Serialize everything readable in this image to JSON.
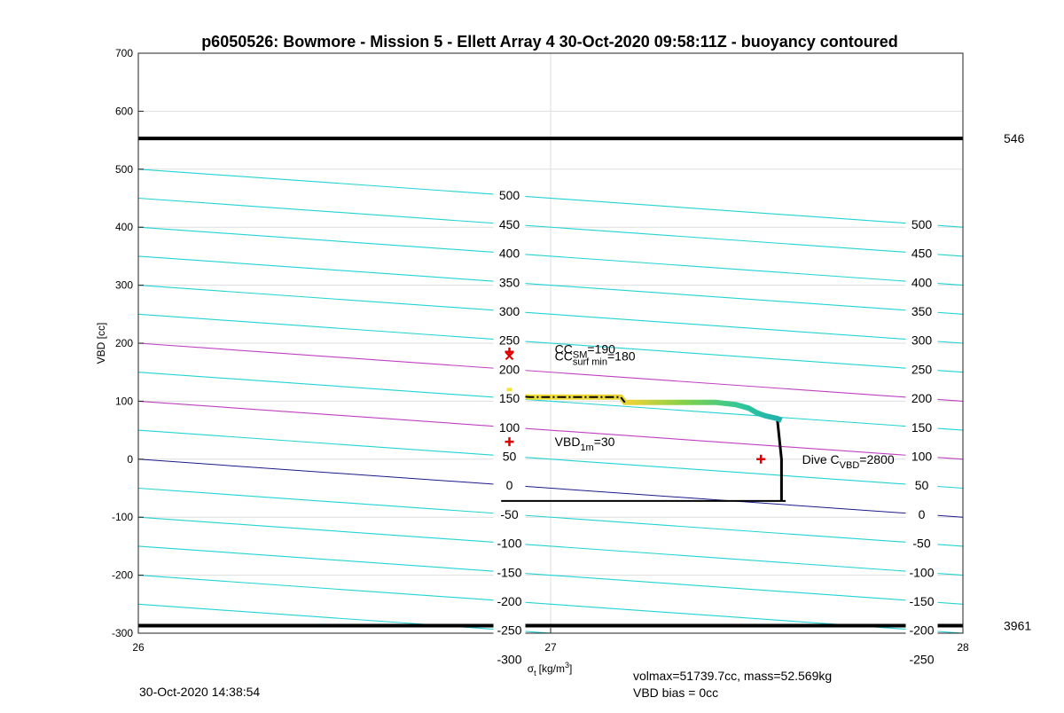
{
  "chart_data": {
    "type": "line",
    "title": "p6050526: Bowmore - Mission 5 - Ellett Array 4 30-Oct-2020 09:58:11Z - buoyancy contoured",
    "xlabel": "σ",
    "xlabel_sub": "t",
    "xlabel_unit": "[kg/m",
    "xlabel_unit_sup": "3",
    "xlabel_unit_end": "]",
    "ylabel": "VBD [cc]",
    "xlim": [
      26,
      28
    ],
    "ylim": [
      -300,
      700
    ],
    "xticks": [
      "26",
      "27",
      "28"
    ],
    "yticks": [
      "-300",
      "-200",
      "-100",
      "0",
      "100",
      "200",
      "300",
      "400",
      "500",
      "600",
      "700"
    ],
    "grid": true,
    "contour_slope_per_unit": -50,
    "contour_levels": [
      -300,
      -250,
      -200,
      -150,
      -100,
      -50,
      0,
      50,
      100,
      150,
      200,
      250,
      300,
      350,
      400,
      450,
      500
    ],
    "contour_colors": {
      "default": "#22d3d3",
      "zero": "#1a1a8c",
      "highlight": "#c040c0"
    },
    "highlight_levels": [
      100,
      200
    ],
    "contour_labels_left": {
      "x": 26.9,
      "levels": [
        "500",
        "450",
        "400",
        "350",
        "300",
        "250",
        "200",
        "150",
        "100",
        "50",
        "0",
        "-50",
        "-100",
        "-150",
        "-200",
        "-250",
        "-300"
      ]
    },
    "contour_labels_right": {
      "x": 27.9,
      "levels": [
        "500",
        "450",
        "400",
        "350",
        "300",
        "250",
        "200",
        "150",
        "100",
        "50",
        "0",
        "-50",
        "-100",
        "-150",
        "-200",
        "-250"
      ]
    },
    "limit_lines": [
      {
        "y": 553,
        "label": "546"
      },
      {
        "y": -287,
        "label": "3961"
      }
    ],
    "profile_upper": [
      [
        26.9,
        123
      ],
      [
        26.9,
        110
      ],
      [
        26.95,
        107
      ],
      [
        27.0,
        107
      ],
      [
        27.1,
        107
      ],
      [
        27.17,
        107
      ],
      [
        27.18,
        98
      ],
      [
        27.3,
        98
      ],
      [
        27.4,
        98
      ],
      [
        27.45,
        94
      ],
      [
        27.48,
        88
      ],
      [
        27.5,
        80
      ],
      [
        27.52,
        75
      ],
      [
        27.55,
        70
      ],
      [
        27.56,
        67
      ]
    ],
    "profile_lower": [
      [
        26.88,
        -72
      ],
      [
        27.0,
        -72
      ],
      [
        27.2,
        -72
      ],
      [
        27.4,
        -72
      ],
      [
        27.5,
        -72
      ],
      [
        27.55,
        -72
      ],
      [
        27.57,
        -72
      ]
    ],
    "profile_vertical": [
      [
        27.55,
        67
      ],
      [
        27.56,
        0
      ],
      [
        27.56,
        -72
      ]
    ],
    "markers": [
      {
        "x": 26.9,
        "y": 185,
        "symbol": "plus",
        "label": "CC",
        "label_sub": "SM",
        "label_end": "=190",
        "lx": 27.01,
        "ly": 190
      },
      {
        "x": 26.9,
        "y": 178,
        "symbol": "x",
        "label": "CC",
        "label_sub": "surf min",
        "label_end": "=180",
        "lx": 27.01,
        "ly": 178
      },
      {
        "x": 26.9,
        "y": 30,
        "symbol": "plus",
        "label": "VBD",
        "label_sub": "1m",
        "label_end": "=30",
        "lx": 27.01,
        "ly": 30
      },
      {
        "x": 27.51,
        "y": 0,
        "symbol": "plus",
        "label": "Dive C",
        "label_sub": "VBD",
        "label_end": "=2800",
        "lx": 27.61,
        "ly": 0
      }
    ]
  },
  "footer": {
    "timestamp": "30-Oct-2020 14:38:54",
    "volmax": "volmax=51739.7cc, mass=52.569kg",
    "vbd_bias": "VBD bias = 0cc"
  },
  "colors": {
    "axis": "#000000",
    "grid": "#dddddd",
    "limit": "#000000",
    "marker": "#dd0000",
    "profile_gradient": [
      "#3b2f9e",
      "#2f6fd0",
      "#20b0c8",
      "#2fc79a",
      "#7fd04a",
      "#d8d030",
      "#f5e232"
    ]
  }
}
